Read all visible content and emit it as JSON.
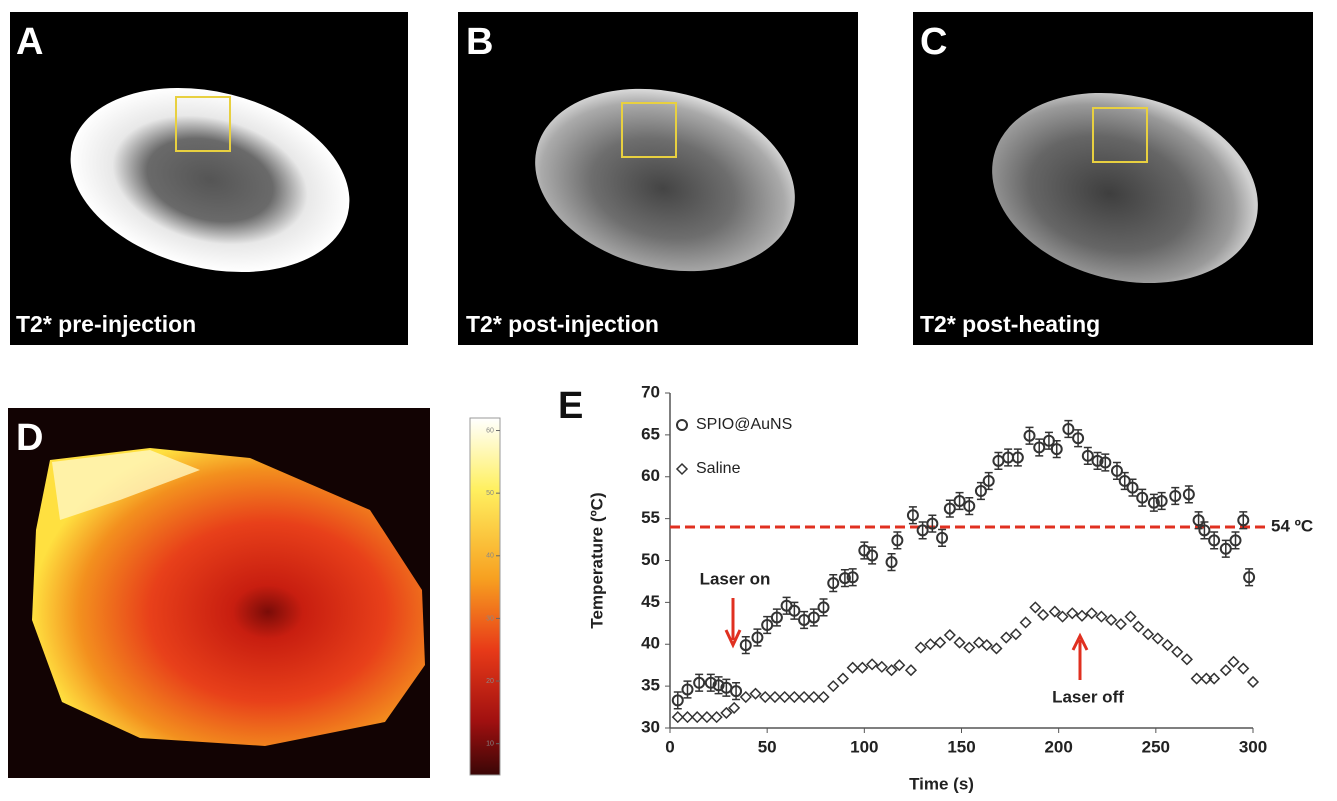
{
  "panels": [
    {
      "letter": "A",
      "caption": "T2* pre-injection"
    },
    {
      "letter": "B",
      "caption": "T2* post-injection"
    },
    {
      "letter": "C",
      "caption": "T2* post-heating"
    }
  ],
  "heatmap": {
    "letter": "D",
    "colorbar_lim": [
      5,
      62
    ],
    "colorbar_ticks": [
      10,
      20,
      30,
      40,
      50,
      60
    ]
  },
  "chart_data": {
    "type": "scatter",
    "letter": "E",
    "xlabel": "Time (s)",
    "ylabel": "Temperature (ºC)",
    "xlim": [
      0,
      300
    ],
    "ylim": [
      30,
      70
    ],
    "xticks": [
      0,
      50,
      100,
      150,
      200,
      250,
      300
    ],
    "yticks": [
      30,
      35,
      40,
      45,
      50,
      55,
      60,
      65,
      70
    ],
    "legend": "upper left",
    "threshold": {
      "value": 54,
      "label": "54 ºC",
      "color": "#e03020"
    },
    "annotations": [
      "Laser on",
      "Laser off"
    ],
    "series": [
      {
        "name": "SPIO@AuNS",
        "marker": "circle",
        "color": "#333333",
        "x": [
          4,
          9,
          15,
          21,
          25,
          29,
          34,
          39,
          45,
          50,
          55,
          60,
          64,
          69,
          74,
          79,
          84,
          90,
          94,
          100,
          104,
          114,
          117,
          125,
          130,
          135,
          140,
          144,
          149,
          154,
          160,
          164,
          169,
          174,
          179,
          185,
          190,
          195,
          199,
          205,
          210,
          215,
          220,
          224,
          230,
          234,
          238,
          243,
          249,
          253,
          260,
          267,
          272,
          275,
          280,
          286,
          291,
          295,
          298
        ],
        "values": [
          33.3,
          34.6,
          35.4,
          35.4,
          35.1,
          34.8,
          34.4,
          39.9,
          40.8,
          42.3,
          43.2,
          44.6,
          44,
          42.9,
          43.2,
          44.4,
          47.3,
          47.9,
          48,
          51.2,
          50.6,
          49.8,
          52.4,
          55.4,
          53.6,
          54.4,
          52.7,
          56.2,
          57.1,
          56.5,
          58.3,
          59.5,
          61.9,
          62.3,
          62.3,
          64.9,
          63.5,
          64.3,
          63.3,
          65.7,
          64.6,
          62.5,
          61.9,
          61.7,
          60.7,
          59.5,
          58.7,
          57.5,
          56.9,
          57.1,
          57.7,
          57.9,
          54.8,
          53.6,
          52.4,
          51.4,
          52.4,
          54.8,
          48
        ],
        "errors": [
          1,
          1,
          1,
          1,
          1,
          1,
          1,
          1,
          1,
          1,
          1,
          1,
          1,
          1,
          1,
          1,
          1,
          1,
          1,
          1,
          1,
          1,
          1,
          1,
          1,
          1,
          1,
          1,
          1,
          1,
          1,
          1,
          1,
          1,
          1,
          1,
          1,
          1,
          1,
          1,
          1,
          1,
          1,
          1,
          1,
          1,
          1,
          1,
          1,
          1,
          1,
          1,
          1,
          1,
          1,
          1,
          1,
          1,
          1
        ]
      },
      {
        "name": "Saline",
        "marker": "diamond",
        "color": "#333333",
        "x": [
          4,
          9,
          14,
          19,
          24,
          29,
          33,
          39,
          44,
          49,
          54,
          59,
          64,
          69,
          74,
          79,
          84,
          89,
          94,
          99,
          104,
          109,
          114,
          118,
          124,
          129,
          134,
          139,
          144,
          149,
          154,
          159,
          163,
          168,
          173,
          178,
          183,
          188,
          192,
          198,
          202,
          207,
          212,
          217,
          222,
          227,
          232,
          237,
          241,
          246,
          251,
          256,
          261,
          266,
          271,
          276,
          280,
          286,
          290,
          295,
          300
        ],
        "values": [
          31.3,
          31.3,
          31.3,
          31.3,
          31.3,
          31.8,
          32.4,
          33.7,
          34.1,
          33.7,
          33.7,
          33.7,
          33.7,
          33.7,
          33.7,
          33.7,
          35,
          35.9,
          37.2,
          37.2,
          37.6,
          37.3,
          36.9,
          37.5,
          36.9,
          39.6,
          40,
          40.2,
          41.1,
          40.2,
          39.6,
          40.2,
          39.9,
          39.5,
          40.8,
          41.2,
          42.6,
          44.4,
          43.5,
          43.9,
          43.3,
          43.7,
          43.4,
          43.7,
          43.3,
          42.9,
          42.4,
          43.3,
          42.1,
          41.2,
          40.7,
          39.9,
          39.1,
          38.2,
          35.9,
          35.9,
          35.9,
          36.9,
          37.9,
          37.1,
          35.5
        ]
      }
    ]
  }
}
